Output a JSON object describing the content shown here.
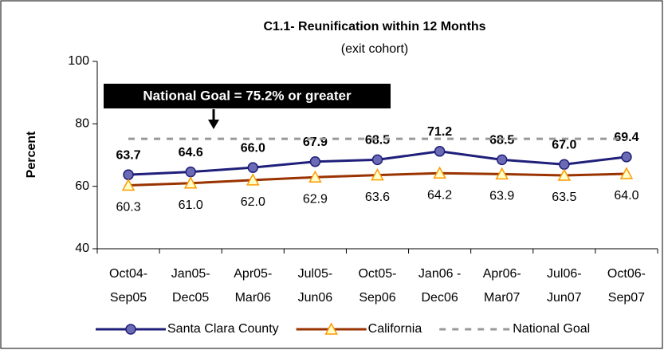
{
  "chart_data": {
    "type": "line",
    "title": "C1.1- Reunification within 12 Months",
    "subtitle": "(exit cohort)",
    "y_label": "Percent",
    "annotation": "National Goal = 75.2% or greater",
    "categories": [
      "Oct04-\nSep05",
      "Jan05-\nDec05",
      "Apr05-\nMar06",
      "Jul05-\nJun06",
      "Oct05-\nSep06",
      "Jan06 -\nDec06",
      "Apr06-\nMar07",
      "Jul06-\nJun07",
      "Oct06-\nSep07"
    ],
    "series": [
      {
        "name": "Santa Clara County",
        "color": "#1f1f7a",
        "marker": "circle",
        "marker_fill": "#6b6bb5",
        "values": [
          63.7,
          64.6,
          66.0,
          67.9,
          68.5,
          71.2,
          68.5,
          67.0,
          69.4
        ],
        "value_labels": [
          "63.7",
          "64.6",
          "66.0",
          "67.9",
          "68.5",
          "71.2",
          "68.5",
          "67.0",
          "69.4"
        ]
      },
      {
        "name": "California",
        "color": "#993300",
        "marker": "triangle",
        "marker_fill": "#ffffcc",
        "marker_stroke": "#ff9900",
        "values": [
          60.3,
          61.0,
          62.0,
          62.9,
          63.6,
          64.2,
          63.9,
          63.5,
          64.0
        ],
        "value_labels": [
          "60.3",
          "61.0",
          "62.0",
          "62.9",
          "63.6",
          "64.2",
          "63.9",
          "63.5",
          "64.0"
        ]
      },
      {
        "name": "National Goal",
        "color": "#999999",
        "dashed": true,
        "values": [
          75.2,
          75.2,
          75.2,
          75.2,
          75.2,
          75.2,
          75.2,
          75.2,
          75.2
        ]
      }
    ],
    "ylim": [
      40,
      100
    ],
    "yticks": [
      40,
      60,
      80,
      100
    ],
    "grid": false
  }
}
